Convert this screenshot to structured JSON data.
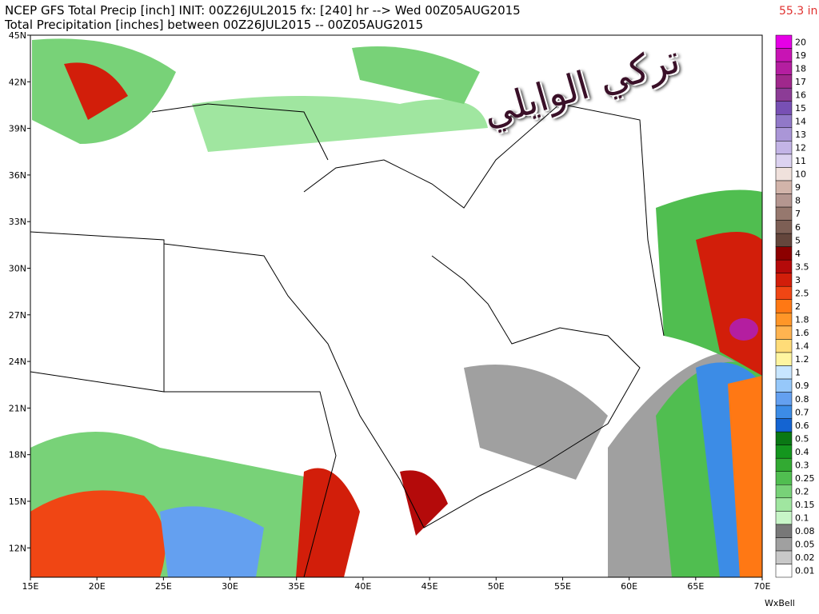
{
  "header": {
    "line1": "NCEP GFS Total Precip [inch] INIT: 00Z26JUL2015 fx: [240] hr --> Wed 00Z05AUG2015",
    "line2": "Total Precipitation [inches] between 00Z26JUL2015 -- 00Z05AUG2015",
    "max_value": "55.3 in"
  },
  "map": {
    "lat_labels": [
      "45N",
      "42N",
      "39N",
      "36N",
      "33N",
      "30N",
      "27N",
      "24N",
      "21N",
      "18N",
      "15N",
      "12N"
    ],
    "lon_labels": [
      "15E",
      "20E",
      "25E",
      "30E",
      "35E",
      "40E",
      "45E",
      "50E",
      "55E",
      "60E",
      "65E",
      "70E"
    ],
    "watermark": "تركي الوايلي"
  },
  "colorbar": [
    {
      "label": "0.01",
      "color": "#ffffff"
    },
    {
      "label": "0.02",
      "color": "#c8c8c8"
    },
    {
      "label": "0.05",
      "color": "#a0a0a0"
    },
    {
      "label": "0.08",
      "color": "#787878"
    },
    {
      "label": "0.1",
      "color": "#c8f5c8"
    },
    {
      "label": "0.15",
      "color": "#a0e6a0"
    },
    {
      "label": "0.2",
      "color": "#78d278"
    },
    {
      "label": "0.25",
      "color": "#50be50"
    },
    {
      "label": "0.3",
      "color": "#32aa32"
    },
    {
      "label": "0.4",
      "color": "#14961e"
    },
    {
      "label": "0.5",
      "color": "#0a7814"
    },
    {
      "label": "0.6",
      "color": "#1464d2"
    },
    {
      "label": "0.7",
      "color": "#3c8ce6"
    },
    {
      "label": "0.8",
      "color": "#64a0f0"
    },
    {
      "label": "0.9",
      "color": "#96c8fa"
    },
    {
      "label": "1",
      "color": "#c8e6ff"
    },
    {
      "label": "1.2",
      "color": "#fff5a0"
    },
    {
      "label": "1.4",
      "color": "#ffdc78"
    },
    {
      "label": "1.6",
      "color": "#ffb450"
    },
    {
      "label": "1.8",
      "color": "#ff9628"
    },
    {
      "label": "2",
      "color": "#ff7814"
    },
    {
      "label": "2.5",
      "color": "#f04614"
    },
    {
      "label": "3",
      "color": "#d21e0a"
    },
    {
      "label": "3.5",
      "color": "#b40a0a"
    },
    {
      "label": "4",
      "color": "#8c0000"
    },
    {
      "label": "5",
      "color": "#64463c"
    },
    {
      "label": "6",
      "color": "#7d5f55"
    },
    {
      "label": "7",
      "color": "#96786e"
    },
    {
      "label": "8",
      "color": "#b49690"
    },
    {
      "label": "9",
      "color": "#d2b4aa"
    },
    {
      "label": "10",
      "color": "#f0e1dc"
    },
    {
      "label": "11",
      "color": "#dcd2f0"
    },
    {
      "label": "12",
      "color": "#c3b4e6"
    },
    {
      "label": "13",
      "color": "#aa96d7"
    },
    {
      "label": "14",
      "color": "#9178c8"
    },
    {
      "label": "15",
      "color": "#7850b4"
    },
    {
      "label": "16",
      "color": "#8c3c96"
    },
    {
      "label": "17",
      "color": "#a0288c"
    },
    {
      "label": "18",
      "color": "#b41ea0"
    },
    {
      "label": "19",
      "color": "#c814b4"
    },
    {
      "label": "20",
      "color": "#e600e6"
    }
  ],
  "footer": {
    "credit": "WxBell"
  }
}
